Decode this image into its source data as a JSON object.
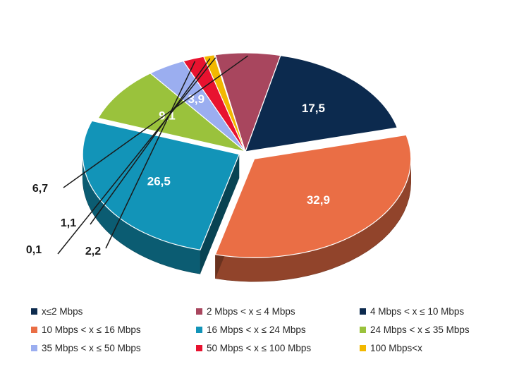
{
  "chart_data": {
    "type": "pie",
    "title": "",
    "slices": [
      {
        "label": "x≤2 Mbps",
        "value": 0.1,
        "value_label": "0,1",
        "color": "#0d2b4e"
      },
      {
        "label": "2 Mbps < x ≤ 4 Mbps",
        "value": 6.7,
        "value_label": "6,7",
        "color": "#a8465e"
      },
      {
        "label": "4 Mbps < x ≤ 10 Mbps",
        "value": 17.5,
        "value_label": "17,5",
        "color": "#0c2a4e"
      },
      {
        "label": "10 Mbps < x ≤ 16 Mbps",
        "value": 32.9,
        "value_label": "32,9",
        "color": "#ea6e45"
      },
      {
        "label": "16 Mbps < x ≤ 24 Mbps",
        "value": 26.5,
        "value_label": "26,5",
        "color": "#1294b8"
      },
      {
        "label": "24 Mbps < x ≤ 35 Mbps",
        "value": 9.1,
        "value_label": "9,1",
        "color": "#9ac23c"
      },
      {
        "label": "35 Mbps < x ≤ 50 Mbps",
        "value": 3.9,
        "value_label": "3,9",
        "color": "#9baef0"
      },
      {
        "label": "50 Mbps < x ≤ 100 Mbps",
        "value": 2.2,
        "value_label": "2,2",
        "color": "#e8122f"
      },
      {
        "label": "100 Mbps<x",
        "value": 1.1,
        "value_label": "1,1",
        "color": "#f2b800"
      }
    ],
    "legend_position": "bottom"
  },
  "legend_order": [
    0,
    1,
    2,
    3,
    4,
    5,
    6,
    7,
    8
  ]
}
